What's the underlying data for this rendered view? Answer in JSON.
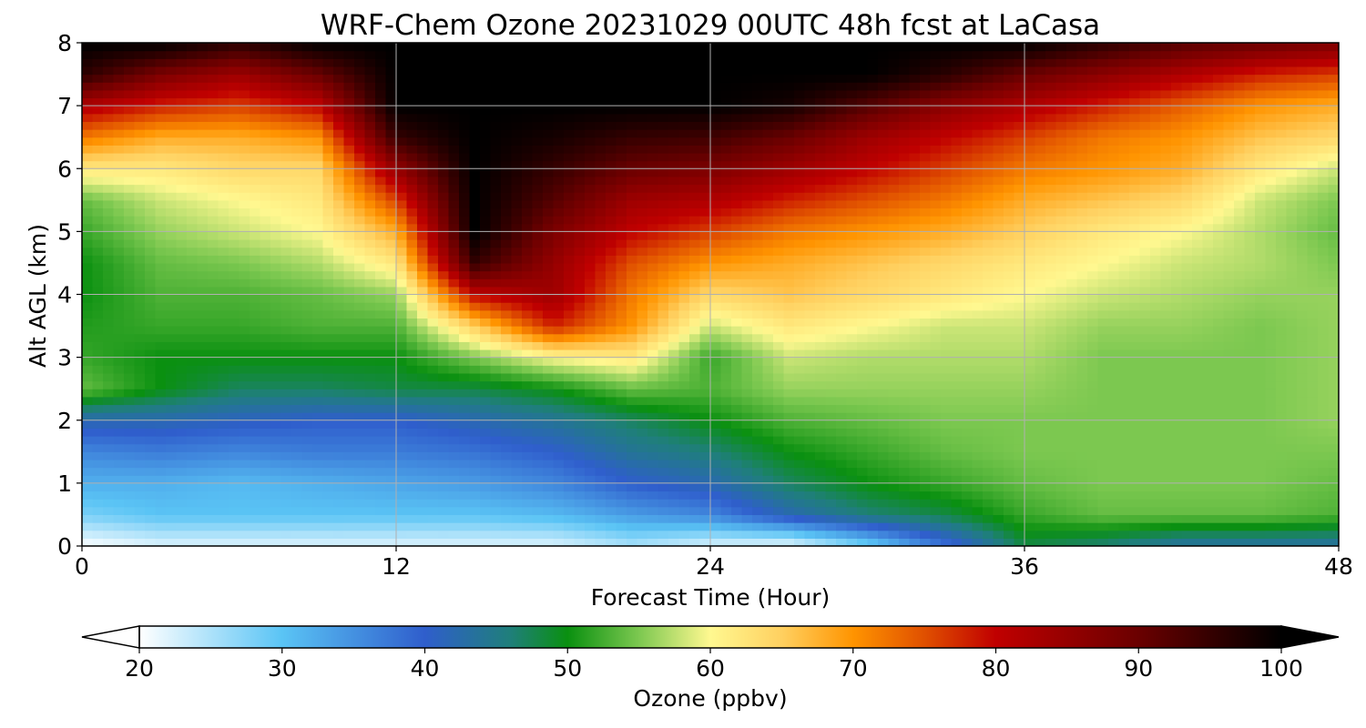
{
  "chart_data": {
    "type": "heatmap",
    "title": "WRF-Chem Ozone  20231029 00UTC 48h fcst at LaCasa",
    "xlabel": "Forecast Time (Hour)",
    "ylabel": "Alt AGL (km)",
    "xlim": [
      0,
      48
    ],
    "ylim": [
      0,
      8
    ],
    "x_ticks": [
      "0",
      "12",
      "24",
      "36",
      "48"
    ],
    "y_ticks": [
      "0",
      "1",
      "2",
      "3",
      "4",
      "5",
      "6",
      "7",
      "8"
    ],
    "grid": true,
    "z_label": "Ozone  (ppbv)",
    "z_range": [
      20,
      100
    ],
    "z_ticks": [
      "20",
      "30",
      "40",
      "50",
      "60",
      "70",
      "80",
      "90",
      "100"
    ],
    "colorbar_extend": "both",
    "colorbar_position": "bottom",
    "colorscale": [
      [
        20,
        "#ffffff"
      ],
      [
        30,
        "#5ac4f5"
      ],
      [
        40,
        "#2f5ecc"
      ],
      [
        46,
        "#1f7f7a"
      ],
      [
        50,
        "#0a9010"
      ],
      [
        55,
        "#7cc850"
      ],
      [
        60,
        "#fff890"
      ],
      [
        65,
        "#ffd060"
      ],
      [
        70,
        "#ff9400"
      ],
      [
        75,
        "#e05000"
      ],
      [
        80,
        "#c00000"
      ],
      [
        90,
        "#6a0000"
      ],
      [
        100,
        "#000000"
      ]
    ],
    "x": [
      0,
      3,
      6,
      9,
      12,
      15,
      18,
      21,
      24,
      27,
      30,
      33,
      36,
      39,
      42,
      45,
      48
    ],
    "y": [
      0,
      0.5,
      1,
      1.5,
      2,
      2.5,
      3,
      3.5,
      4,
      4.5,
      5,
      5.5,
      6,
      6.5,
      7,
      7.5,
      8
    ],
    "z": [
      [
        20,
        22,
        22,
        22,
        22,
        22,
        22,
        25,
        22,
        21,
        28,
        38,
        48,
        46,
        43,
        43,
        43
      ],
      [
        28,
        30,
        30,
        30,
        30,
        30,
        31,
        34,
        36,
        42,
        46,
        48,
        52,
        54,
        54,
        54,
        53
      ],
      [
        32,
        32,
        31,
        32,
        33,
        34,
        36,
        40,
        42,
        47,
        50,
        52,
        54,
        55,
        55,
        55,
        54
      ],
      [
        36,
        37,
        36,
        37,
        37,
        38,
        40,
        44,
        46,
        50,
        52,
        54,
        55,
        55,
        55,
        55,
        55
      ],
      [
        42,
        42,
        41,
        40,
        40,
        42,
        44,
        47,
        50,
        53,
        54,
        55,
        55,
        55,
        55,
        55,
        56
      ],
      [
        54,
        50,
        47,
        47,
        48,
        48,
        50,
        54,
        53,
        56,
        56,
        56,
        56,
        55,
        55,
        55,
        56
      ],
      [
        52,
        50,
        50,
        50,
        50,
        55,
        60,
        62,
        52,
        58,
        57,
        57,
        57,
        55,
        55,
        55,
        56
      ],
      [
        51,
        52,
        52,
        53,
        53,
        65,
        78,
        70,
        58,
        62,
        60,
        58,
        58,
        56,
        56,
        55,
        56
      ],
      [
        50,
        53,
        53,
        54,
        56,
        80,
        84,
        72,
        64,
        66,
        64,
        62,
        60,
        58,
        57,
        56,
        56
      ],
      [
        50,
        54,
        55,
        57,
        62,
        95,
        85,
        75,
        70,
        68,
        66,
        64,
        62,
        60,
        58,
        57,
        55
      ],
      [
        52,
        56,
        58,
        60,
        68,
        100,
        88,
        80,
        76,
        72,
        70,
        68,
        65,
        62,
        60,
        57,
        54
      ],
      [
        54,
        58,
        60,
        62,
        76,
        100,
        92,
        84,
        82,
        78,
        75,
        72,
        68,
        66,
        64,
        58,
        55
      ],
      [
        62,
        62,
        64,
        64,
        85,
        100,
        95,
        90,
        88,
        84,
        80,
        76,
        72,
        70,
        68,
        62,
        58
      ],
      [
        72,
        68,
        68,
        70,
        95,
        100,
        98,
        95,
        94,
        90,
        84,
        80,
        76,
        72,
        70,
        66,
        64
      ],
      [
        82,
        78,
        76,
        80,
        100,
        100,
        100,
        100,
        100,
        98,
        92,
        86,
        82,
        78,
        74,
        70,
        68
      ],
      [
        96,
        88,
        84,
        90,
        100,
        100,
        100,
        100,
        100,
        100,
        100,
        96,
        90,
        86,
        82,
        78,
        76
      ],
      [
        100,
        100,
        96,
        100,
        100,
        100,
        100,
        100,
        100,
        100,
        100,
        100,
        100,
        96,
        92,
        90,
        88
      ]
    ]
  }
}
